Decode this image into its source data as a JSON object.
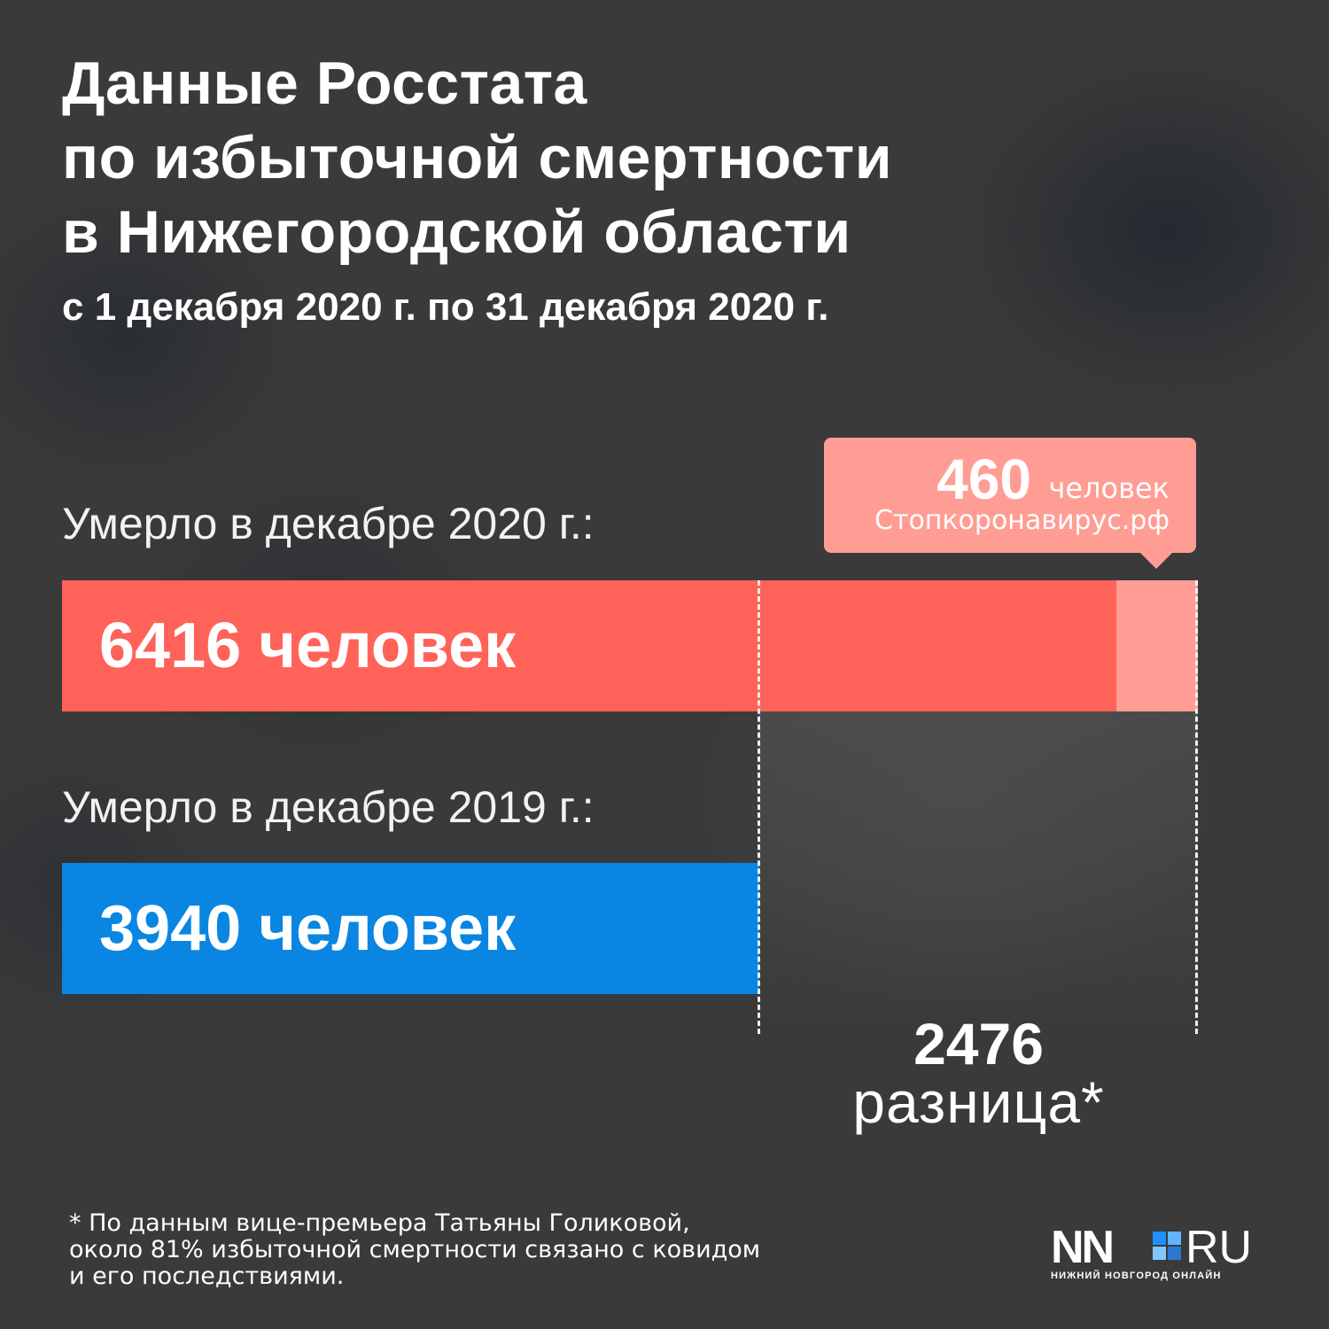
{
  "title_lines": [
    "Данные Росстата",
    "по избыточной смертности",
    "в Нижегородской области"
  ],
  "subtitle": "с 1 декабря 2020 г. по 31 декабря 2020 г.",
  "chart_data": {
    "type": "bar",
    "orientation": "horizontal",
    "categories": [
      "Умерло в декабре 2020 г.:",
      "Умерло в декабре 2019 г.:"
    ],
    "values": [
      6416,
      3940
    ],
    "value_labels": [
      "6416 человек",
      "3940 человек"
    ],
    "colors": [
      "#ff6259",
      "#0a86e2"
    ],
    "covid_segment": {
      "value": 460,
      "number": "460",
      "unit": "человек",
      "source": "Стопкоронавирус.рф",
      "color": "#ff9d94"
    },
    "difference": {
      "value": 2476,
      "number": "2476",
      "label": "разница*"
    }
  },
  "footnote_lines": [
    "* По данным вице-премьера Татьяны Голиковой,",
    "около 81% избыточной смертности связано с ковидом",
    "и его последствиями."
  ],
  "logo": {
    "left": "NN",
    "right": "RU",
    "tagline": "НИЖНИЙ НОВГОРОД ОНЛАЙН",
    "square_colors": [
      "#1e90ff",
      "#5fb6ff",
      "#7fc8ff",
      "#2a78d0"
    ]
  }
}
